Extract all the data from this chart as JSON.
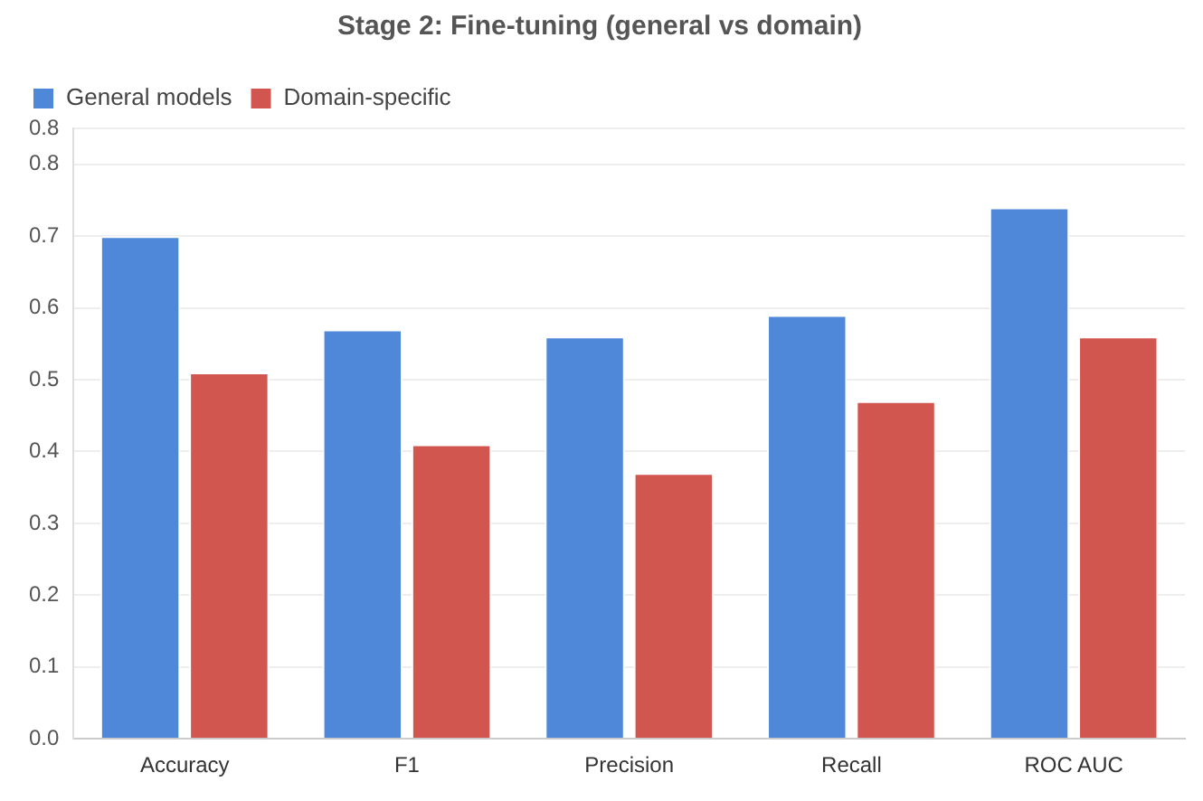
{
  "chart_data": {
    "type": "bar",
    "title": "Stage 2: Fine-tuning (general vs domain)",
    "categories": [
      "Accuracy",
      "F1",
      "Precision",
      "Recall",
      "ROC AUC"
    ],
    "series": [
      {
        "name": "General models",
        "color": "#4f88d8",
        "values": [
          0.7,
          0.57,
          0.56,
          0.59,
          0.74
        ]
      },
      {
        "name": "Domain-specific",
        "color": "#d25650",
        "values": [
          0.51,
          0.41,
          0.37,
          0.47,
          0.56
        ]
      }
    ],
    "ylim": [
      0,
      0.85
    ],
    "yticks": [
      {
        "value": 0,
        "label": "0.0"
      },
      0.1,
      0.2,
      0.3,
      0.4,
      0.5,
      0.6,
      0.7,
      {
        "value": 0.8,
        "label": "0.8"
      },
      {
        "value": 0.85,
        "label": "0.8"
      }
    ],
    "grid": "y",
    "legend": "top left"
  }
}
